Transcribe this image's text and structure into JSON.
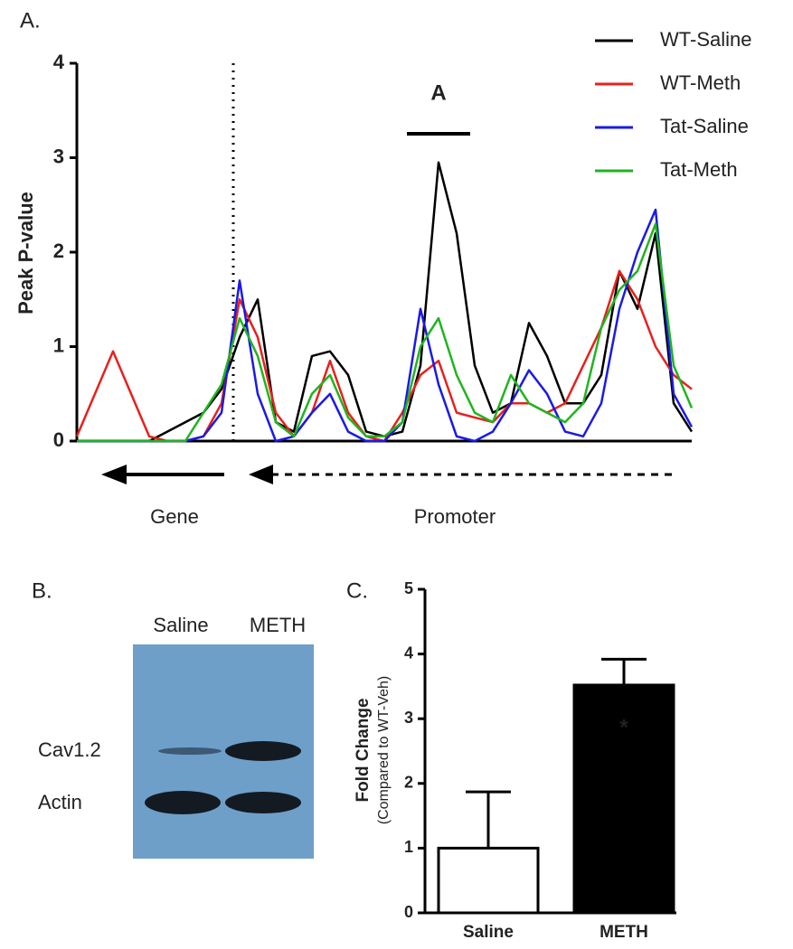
{
  "panels": {
    "a": "A.",
    "b": "B.",
    "c": "C."
  },
  "chart_data": [
    {
      "type": "line",
      "ylabel": "Peak P-value",
      "annotation": "A",
      "gene_label": "Gene",
      "promoter_label": "Promoter",
      "ylim": [
        0,
        4
      ],
      "yticks": [
        0,
        1,
        2,
        3,
        4
      ],
      "legend": "top-right",
      "series": [
        {
          "name": "WT-Saline",
          "color": "#000000",
          "values": [
            0,
            0,
            0,
            0,
            0,
            0.1,
            0.2,
            0.3,
            0.55,
            1.1,
            1.5,
            0.2,
            0.1,
            0.9,
            0.95,
            0.7,
            0.1,
            0.05,
            0.1,
            0.8,
            2.95,
            2.2,
            0.8,
            0.3,
            0.4,
            1.25,
            0.9,
            0.4,
            0.4,
            0.7,
            1.8,
            1.4,
            2.2,
            0.4,
            0.1
          ]
        },
        {
          "name": "WT-Meth",
          "color": "#e8201c",
          "values": [
            0.05,
            0.5,
            0.95,
            0.5,
            0.05,
            0,
            0,
            0.05,
            0.4,
            1.5,
            1.1,
            0.3,
            0.05,
            0.3,
            0.85,
            0.3,
            0.05,
            0,
            0.3,
            0.7,
            0.85,
            0.3,
            0.25,
            0.2,
            0.4,
            0.4,
            0.3,
            0.4,
            0.8,
            1.2,
            1.8,
            1.5,
            1.0,
            0.7,
            0.55
          ]
        },
        {
          "name": "Tat-Saline",
          "color": "#1a1ae6",
          "values": [
            0,
            0,
            0,
            0,
            0,
            0,
            0,
            0.05,
            0.3,
            1.7,
            0.5,
            0,
            0.05,
            0.3,
            0.5,
            0.1,
            0,
            0,
            0.2,
            1.4,
            0.6,
            0.05,
            0,
            0.1,
            0.4,
            0.75,
            0.5,
            0.1,
            0.05,
            0.4,
            1.4,
            2.0,
            2.45,
            0.5,
            0.15
          ]
        },
        {
          "name": "Tat-Meth",
          "color": "#1fb51f",
          "values": [
            0,
            0,
            0,
            0,
            0,
            0,
            0,
            0.3,
            0.6,
            1.3,
            0.9,
            0.2,
            0.05,
            0.5,
            0.7,
            0.25,
            0.05,
            0.05,
            0.2,
            1.0,
            1.3,
            0.7,
            0.3,
            0.2,
            0.7,
            0.4,
            0.3,
            0.2,
            0.4,
            1.2,
            1.6,
            1.8,
            2.3,
            0.8,
            0.35
          ]
        }
      ]
    },
    {
      "type": "bar",
      "ylabel": "Fold Change",
      "ylabel2": "(Compared to WT-Veh)",
      "annotation": "*",
      "categories": [
        "Saline",
        "METH"
      ],
      "values": [
        1.0,
        3.52
      ],
      "errors": [
        0.87,
        0.4
      ],
      "colors": [
        "#ffffff",
        "#000000"
      ],
      "ylim": [
        0,
        5
      ],
      "yticks": [
        0,
        1,
        2,
        3,
        4,
        5
      ]
    }
  ],
  "blot": {
    "lanes": [
      "Saline",
      "METH"
    ],
    "rows": [
      "Cav1.2",
      "Actin"
    ]
  }
}
